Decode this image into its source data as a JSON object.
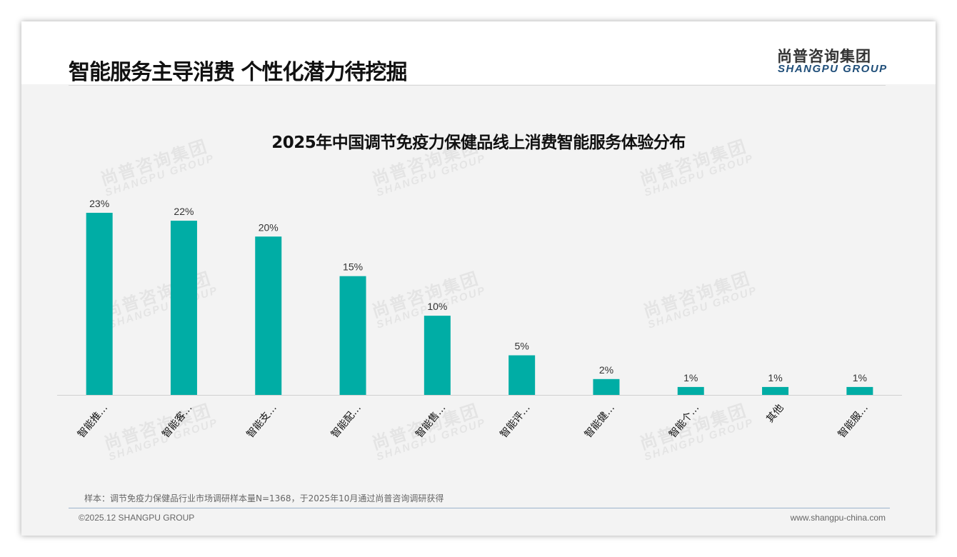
{
  "header": {
    "title": "智能服务主导消费 个性化潜力待挖掘",
    "logo_cn": "尚普咨询集团",
    "logo_en": "SHANGPU GROUP"
  },
  "chart_data": {
    "type": "bar",
    "title": "2025年中国调节免疫力保健品线上消费智能服务体验分布",
    "categories": [
      "智能推…",
      "智能客…",
      "智能支…",
      "智能配…",
      "智能售…",
      "智能评…",
      "智能健…",
      "智能个…",
      "其他",
      "智能服…"
    ],
    "values": [
      23,
      22,
      20,
      15,
      10,
      5,
      2,
      1,
      1,
      1
    ],
    "value_labels": [
      "23%",
      "22%",
      "20%",
      "15%",
      "10%",
      "5%",
      "2%",
      "1%",
      "1%",
      "1%"
    ],
    "unit": "%",
    "xlabel": "",
    "ylabel": "",
    "ylim": [
      0,
      25
    ],
    "grid": false,
    "bar_color": "#00ADA5"
  },
  "watermark": {
    "cn": "尚普咨询集团",
    "en": "SHANGPU GROUP"
  },
  "footer": {
    "note": "样本：调节免疫力保健品行业市场调研样本量N=1368，于2025年10月通过尚普咨询调研获得",
    "copyright": "©2025.12 SHANGPU GROUP",
    "website": "www.shangpu-china.com"
  }
}
